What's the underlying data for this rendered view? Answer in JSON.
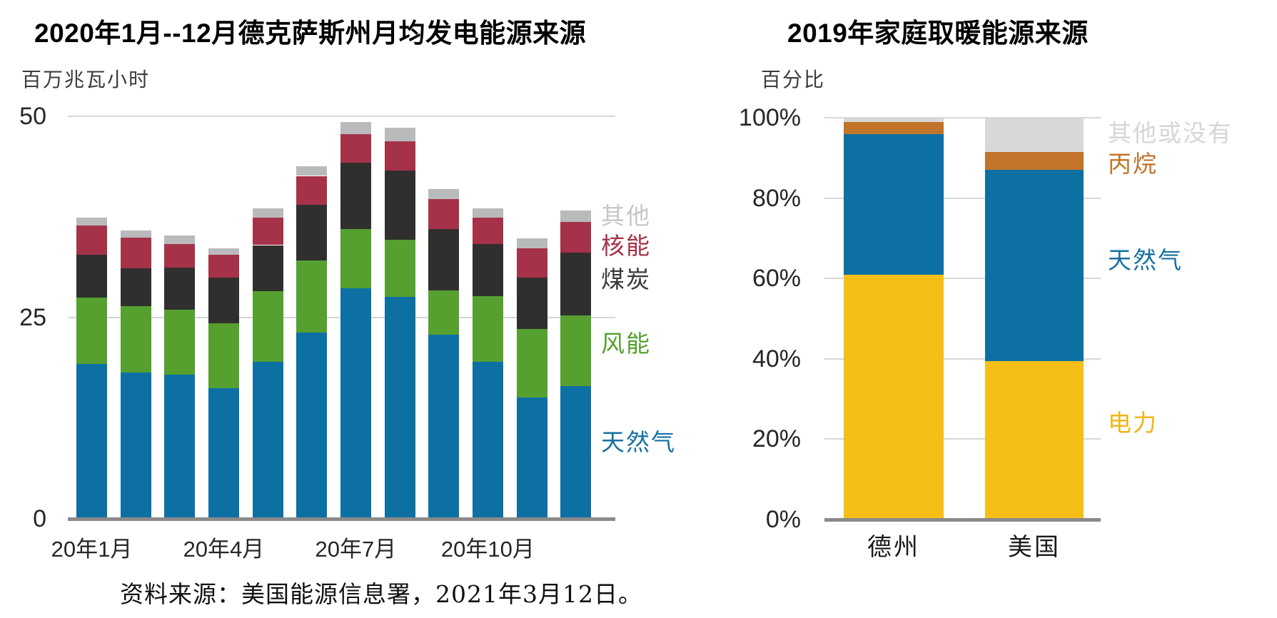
{
  "source_note": "资料来源：美国能源信息署，2021年3月12日。",
  "chart_data": [
    {
      "id": "texas-monthly-generation",
      "type": "bar",
      "stacked": true,
      "title": "2020年1月--12月德克萨斯州月均发电能源来源",
      "ylabel": "百万兆瓦小时",
      "xlabel": "",
      "ylim": [
        0,
        50
      ],
      "yticks": [
        0,
        25,
        50
      ],
      "grid": "horizontal",
      "legend_position": "right",
      "categories": [
        "20年1月",
        "20年2月",
        "20年3月",
        "20年4月",
        "20年5月",
        "20年6月",
        "20年7月",
        "20年8月",
        "20年9月",
        "20年10月",
        "20年11月",
        "20年12月"
      ],
      "xticks_shown": [
        {
          "label": "20年1月",
          "bar_index": 0
        },
        {
          "label": "20年4月",
          "bar_index": 3
        },
        {
          "label": "20年7月",
          "bar_index": 6
        },
        {
          "label": "20年10月",
          "bar_index": 9
        }
      ],
      "series": [
        {
          "name": "天然气",
          "color": "#0d70a2",
          "label_color": "#16719f",
          "values": [
            19.2,
            18.2,
            17.9,
            16.2,
            19.5,
            23.1,
            28.6,
            27.6,
            22.9,
            19.5,
            15.1,
            16.5
          ]
        },
        {
          "name": "风能",
          "color": "#55a02f",
          "label_color": "#55a02f",
          "values": [
            8.3,
            8.2,
            8.1,
            8.1,
            8.8,
            9.0,
            7.4,
            7.1,
            5.5,
            8.2,
            8.5,
            8.8
          ]
        },
        {
          "name": "煤炭",
          "color": "#302f2e",
          "label_color": "#3a3938",
          "values": [
            5.3,
            4.7,
            5.2,
            5.7,
            5.7,
            6.9,
            8.2,
            8.6,
            7.6,
            6.4,
            6.4,
            7.8
          ]
        },
        {
          "name": "核能",
          "color": "#a53248",
          "label_color": "#a53248",
          "values": [
            3.6,
            3.8,
            2.9,
            2.8,
            3.4,
            3.6,
            3.6,
            3.6,
            3.7,
            3.3,
            3.6,
            3.8
          ]
        },
        {
          "name": "其他",
          "color": "#b9babb",
          "label_color": "#c6c7c8",
          "values": [
            1.0,
            0.9,
            1.1,
            0.8,
            1.2,
            1.2,
            1.5,
            1.7,
            1.3,
            1.2,
            1.2,
            1.4
          ]
        }
      ],
      "legend_order_top_to_bottom": [
        "其他",
        "核能",
        "煤炭",
        "风能",
        "天然气"
      ]
    },
    {
      "id": "home-heating-2019",
      "type": "bar",
      "stacked": true,
      "percent": true,
      "title": "2019年家庭取暖能源来源",
      "ylabel": "百分比",
      "xlabel": "",
      "ylim": [
        0,
        100
      ],
      "yticks": [
        0,
        20,
        40,
        60,
        80,
        100
      ],
      "grid": "horizontal",
      "legend_position": "right",
      "categories": [
        "德州",
        "美国"
      ],
      "series": [
        {
          "name": "电力",
          "color": "#f5bf17",
          "label_color": "#eeb516",
          "values": [
            61,
            39.5
          ]
        },
        {
          "name": "天然气",
          "color": "#0d70a2",
          "label_color": "#16719f",
          "values": [
            35,
            47.5
          ]
        },
        {
          "name": "丙烷",
          "color": "#c1742a",
          "label_color": "#c1742a",
          "values": [
            3,
            4.5
          ]
        },
        {
          "name": "其他或没有",
          "color": "#d8d8d8",
          "label_color": "#d5d6d7",
          "values": [
            1,
            8.5
          ]
        }
      ],
      "legend_order_top_to_bottom": [
        "其他或没有",
        "丙烷",
        "天然气",
        "电力"
      ]
    }
  ]
}
